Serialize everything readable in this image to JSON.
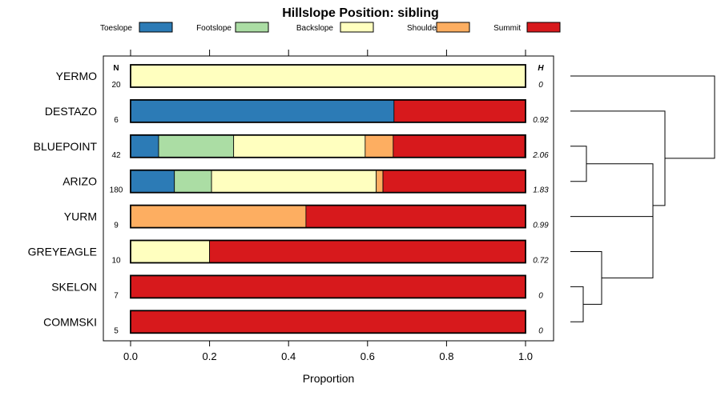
{
  "chart_data": {
    "type": "stacked-bar-horizontal",
    "title": "Hillslope Position: sibling",
    "xlabel": "Proportion",
    "ylabel": "",
    "xlim": [
      0,
      1
    ],
    "x_ticks": [
      "0.0",
      "0.2",
      "0.4",
      "0.6",
      "0.8",
      "1.0"
    ],
    "x_tick_values": [
      0,
      0.2,
      0.4,
      0.6,
      0.8,
      1.0
    ],
    "legend_position": "top",
    "n_header": "N",
    "h_header": "H",
    "categories_legend": [
      {
        "name": "Toeslope",
        "color": "#2c7bb6"
      },
      {
        "name": "Footslope",
        "color": "#abdda4"
      },
      {
        "name": "Backslope",
        "color": "#ffffbf"
      },
      {
        "name": "Shoulder",
        "color": "#fdae61"
      },
      {
        "name": "Summit",
        "color": "#d7191c"
      }
    ],
    "rows": [
      {
        "label": "YERMO",
        "n": "20",
        "h": "0",
        "values": [
          0,
          0,
          1.0,
          0,
          0
        ]
      },
      {
        "label": "DESTAZO",
        "n": "6",
        "h": "0.92",
        "values": [
          0.667,
          0,
          0,
          0,
          0.333
        ]
      },
      {
        "label": "BLUEPOINT",
        "n": "42",
        "h": "2.06",
        "values": [
          0.071,
          0.19,
          0.333,
          0.071,
          0.333
        ]
      },
      {
        "label": "ARIZO",
        "n": "180",
        "h": "1.83",
        "values": [
          0.111,
          0.094,
          0.417,
          0.017,
          0.361
        ]
      },
      {
        "label": "YURM",
        "n": "9",
        "h": "0.99",
        "values": [
          0,
          0,
          0,
          0.444,
          0.556
        ]
      },
      {
        "label": "GREYEAGLE",
        "n": "10",
        "h": "0.72",
        "values": [
          0,
          0,
          0.2,
          0,
          0.8
        ]
      },
      {
        "label": "SKELON",
        "n": "7",
        "h": "0",
        "values": [
          0,
          0,
          0,
          0,
          1.0
        ]
      },
      {
        "label": "COMMSKI",
        "n": "5",
        "h": "0",
        "values": [
          0,
          0,
          0,
          0,
          1.0
        ]
      }
    ],
    "dendrogram": "hierarchical clustering of rows"
  }
}
